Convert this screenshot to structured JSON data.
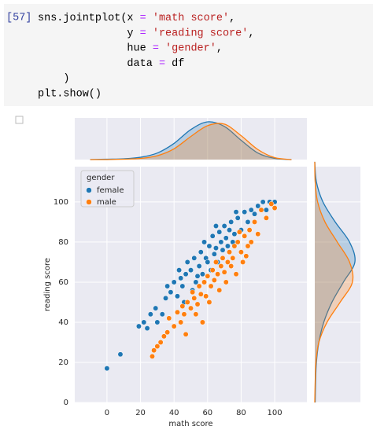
{
  "cell": {
    "prompt": "[57]",
    "code_lines": [
      [
        {
          "text": "sns.jointplot(x ",
          "color": "#000000"
        },
        {
          "text": "=",
          "color": "#aa22ff"
        },
        {
          "text": " ",
          "color": "#000000"
        },
        {
          "text": "'math score'",
          "color": "#ba2121"
        },
        {
          "text": ",",
          "color": "#000000"
        }
      ],
      [
        {
          "text": "              y ",
          "color": "#000000"
        },
        {
          "text": "=",
          "color": "#aa22ff"
        },
        {
          "text": " ",
          "color": "#000000"
        },
        {
          "text": "'reading score'",
          "color": "#ba2121"
        },
        {
          "text": ",",
          "color": "#000000"
        }
      ],
      [
        {
          "text": "              hue ",
          "color": "#000000"
        },
        {
          "text": "=",
          "color": "#aa22ff"
        },
        {
          "text": " ",
          "color": "#000000"
        },
        {
          "text": "'gender'",
          "color": "#ba2121"
        },
        {
          "text": ",",
          "color": "#000000"
        }
      ],
      [
        {
          "text": "              data ",
          "color": "#000000"
        },
        {
          "text": "=",
          "color": "#aa22ff"
        },
        {
          "text": " df",
          "color": "#000000"
        }
      ],
      [
        {
          "text": "    )",
          "color": "#000000"
        }
      ],
      [
        {
          "text": "plt.show()",
          "color": "#000000"
        }
      ]
    ]
  },
  "chart_data": {
    "type": "scatter",
    "x_label": "math score",
    "y_label": "reading score",
    "legend_title": "gender",
    "legend": "upper left",
    "grid": true,
    "xlim": [
      -19.2,
      119.2
    ],
    "ylim": [
      0,
      117.6
    ],
    "xticks": [
      0,
      20,
      40,
      60,
      80,
      100
    ],
    "yticks": [
      0,
      20,
      40,
      60,
      80,
      100
    ],
    "density_x_grid": [
      -10,
      0,
      10,
      20,
      30,
      40,
      50,
      60,
      70,
      80,
      90,
      100,
      110
    ],
    "density_y_grid": [
      0,
      10,
      20,
      30,
      40,
      50,
      60,
      70,
      80,
      90,
      100,
      110,
      120
    ],
    "series": [
      {
        "name": "female",
        "color": "#1f77b4",
        "x": [
          0,
          8,
          19,
          22,
          24,
          26,
          30,
          33,
          35,
          38,
          40,
          42,
          44,
          45,
          47,
          48,
          50,
          52,
          53,
          55,
          56,
          57,
          58,
          59,
          60,
          61,
          62,
          63,
          64,
          65,
          66,
          67,
          68,
          69,
          70,
          71,
          72,
          73,
          74,
          75,
          76,
          78,
          80,
          82,
          84,
          86,
          88,
          90,
          93,
          95,
          97,
          100,
          29,
          36,
          43,
          46,
          51,
          54,
          65,
          77
        ],
        "y": [
          17,
          24,
          38,
          40,
          37,
          44,
          40,
          44,
          52,
          55,
          60,
          53,
          62,
          58,
          64,
          70,
          66,
          72,
          60,
          68,
          75,
          64,
          80,
          72,
          70,
          78,
          66,
          83,
          74,
          77,
          70,
          85,
          80,
          76,
          88,
          82,
          78,
          86,
          90,
          80,
          84,
          92,
          86,
          95,
          90,
          96,
          94,
          98,
          100,
          96,
          100,
          100,
          47,
          58,
          66,
          50,
          56,
          63,
          88,
          95
        ],
        "x_density": [
          0,
          0.01,
          0.02,
          0.06,
          0.17,
          0.42,
          0.78,
          0.98,
          0.86,
          0.5,
          0.17,
          0.03,
          0
        ],
        "y_density": [
          0.01,
          0.02,
          0.04,
          0.1,
          0.22,
          0.42,
          0.7,
          0.98,
          0.85,
          0.5,
          0.2,
          0.04,
          0
        ]
      },
      {
        "name": "male",
        "color": "#ff7f0e",
        "x": [
          27,
          28,
          30,
          32,
          34,
          36,
          37,
          40,
          42,
          44,
          45,
          46,
          48,
          50,
          51,
          52,
          54,
          55,
          56,
          58,
          59,
          60,
          62,
          63,
          64,
          65,
          66,
          67,
          68,
          69,
          70,
          72,
          73,
          74,
          75,
          76,
          77,
          78,
          80,
          81,
          82,
          84,
          85,
          86,
          88,
          90,
          92,
          95,
          98,
          100,
          47,
          57,
          53,
          71,
          79,
          83,
          61
        ],
        "y": [
          23,
          26,
          28,
          30,
          33,
          35,
          42,
          38,
          45,
          40,
          48,
          44,
          50,
          47,
          55,
          52,
          49,
          58,
          54,
          60,
          53,
          63,
          58,
          66,
          61,
          70,
          64,
          56,
          68,
          72,
          65,
          70,
          75,
          68,
          72,
          78,
          64,
          80,
          75,
          70,
          83,
          78,
          86,
          80,
          90,
          84,
          96,
          92,
          99,
          97,
          34,
          40,
          44,
          60,
          85,
          73,
          50
        ],
        "x_density": [
          0,
          0,
          0.01,
          0.03,
          0.1,
          0.28,
          0.6,
          0.88,
          0.92,
          0.62,
          0.26,
          0.05,
          0
        ],
        "y_density": [
          0,
          0.01,
          0.03,
          0.1,
          0.3,
          0.62,
          0.92,
          0.85,
          0.55,
          0.25,
          0.07,
          0.01,
          0
        ]
      }
    ]
  }
}
